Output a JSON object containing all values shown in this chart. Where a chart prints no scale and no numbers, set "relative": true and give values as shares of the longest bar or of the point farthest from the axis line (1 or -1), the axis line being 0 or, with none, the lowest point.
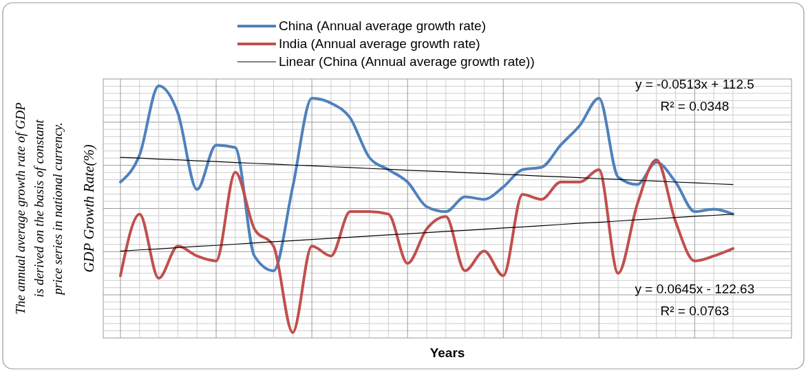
{
  "chart_data": {
    "type": "line",
    "relative": true,
    "xlabel": "Years",
    "ylabel": "GDP Growth Rate(%)",
    "grid": true,
    "legend": "top",
    "marker": "none",
    "categories": [
      null,
      null,
      null,
      null,
      null,
      null,
      null,
      null,
      null,
      null,
      null,
      null,
      null,
      null,
      null,
      null,
      null,
      null,
      null,
      null,
      null,
      null,
      null,
      null,
      null,
      null,
      null,
      null,
      null,
      null,
      null,
      null,
      null
    ],
    "series": [
      {
        "name": "China (Annual average growth rate)",
        "color": "#4f81bd",
        "values": [
          0.61,
          0.72,
          1.0,
          0.89,
          0.58,
          0.76,
          0.75,
          0.31,
          0.25,
          0.59,
          0.95,
          0.93,
          0.87,
          0.71,
          0.66,
          0.61,
          0.51,
          0.49,
          0.55,
          0.54,
          0.59,
          0.66,
          0.67,
          0.76,
          0.84,
          0.95,
          0.63,
          0.6,
          0.69,
          0.61,
          0.49,
          0.5,
          0.48
        ]
      },
      {
        "name": "India (Annual average growth rate)",
        "color": "#c0504d",
        "values": [
          0.23,
          0.48,
          0.22,
          0.35,
          0.31,
          0.29,
          0.65,
          0.42,
          0.35,
          0,
          0.35,
          0.31,
          0.49,
          0.49,
          0.48,
          0.28,
          0.42,
          0.47,
          0.25,
          0.33,
          0.23,
          0.56,
          0.54,
          0.61,
          0.61,
          0.66,
          0.24,
          0.52,
          0.7,
          0.45,
          0.29,
          0.31,
          0.34
        ]
      },
      {
        "name": "Linear (China (Annual average growth rate))",
        "type": "line",
        "color": "#000000",
        "values": [
          0.71,
          0.707,
          0.703,
          0.7,
          0.696,
          0.693,
          0.689,
          0.686,
          0.683,
          0.679,
          0.676,
          0.672,
          0.669,
          0.665,
          0.662,
          0.658,
          0.655,
          0.652,
          0.648,
          0.645,
          0.641,
          0.638,
          0.634,
          0.631,
          0.628,
          0.624,
          0.621,
          0.617,
          0.614,
          0.61,
          0.607,
          0.603,
          0.6
        ]
      },
      {
        "type": "line",
        "color": "#000000",
        "values": [
          0.33,
          0.335,
          0.339,
          0.344,
          0.349,
          0.353,
          0.358,
          0.363,
          0.368,
          0.372,
          0.377,
          0.382,
          0.386,
          0.391,
          0.396,
          0.4,
          0.405,
          0.41,
          0.414,
          0.419,
          0.424,
          0.428,
          0.433,
          0.438,
          0.443,
          0.447,
          0.452,
          0.457,
          0.461,
          0.466,
          0.471,
          0.475,
          0.48
        ]
      }
    ],
    "annotations": [
      "The annual average growth rate of GDP is derived on the basis of constant price series in national currency.",
      "y = -0.0513x + 112.5",
      "R² = 0.0348",
      "y = 0.0645x - 122.63",
      "R² = 0.0763"
    ]
  }
}
